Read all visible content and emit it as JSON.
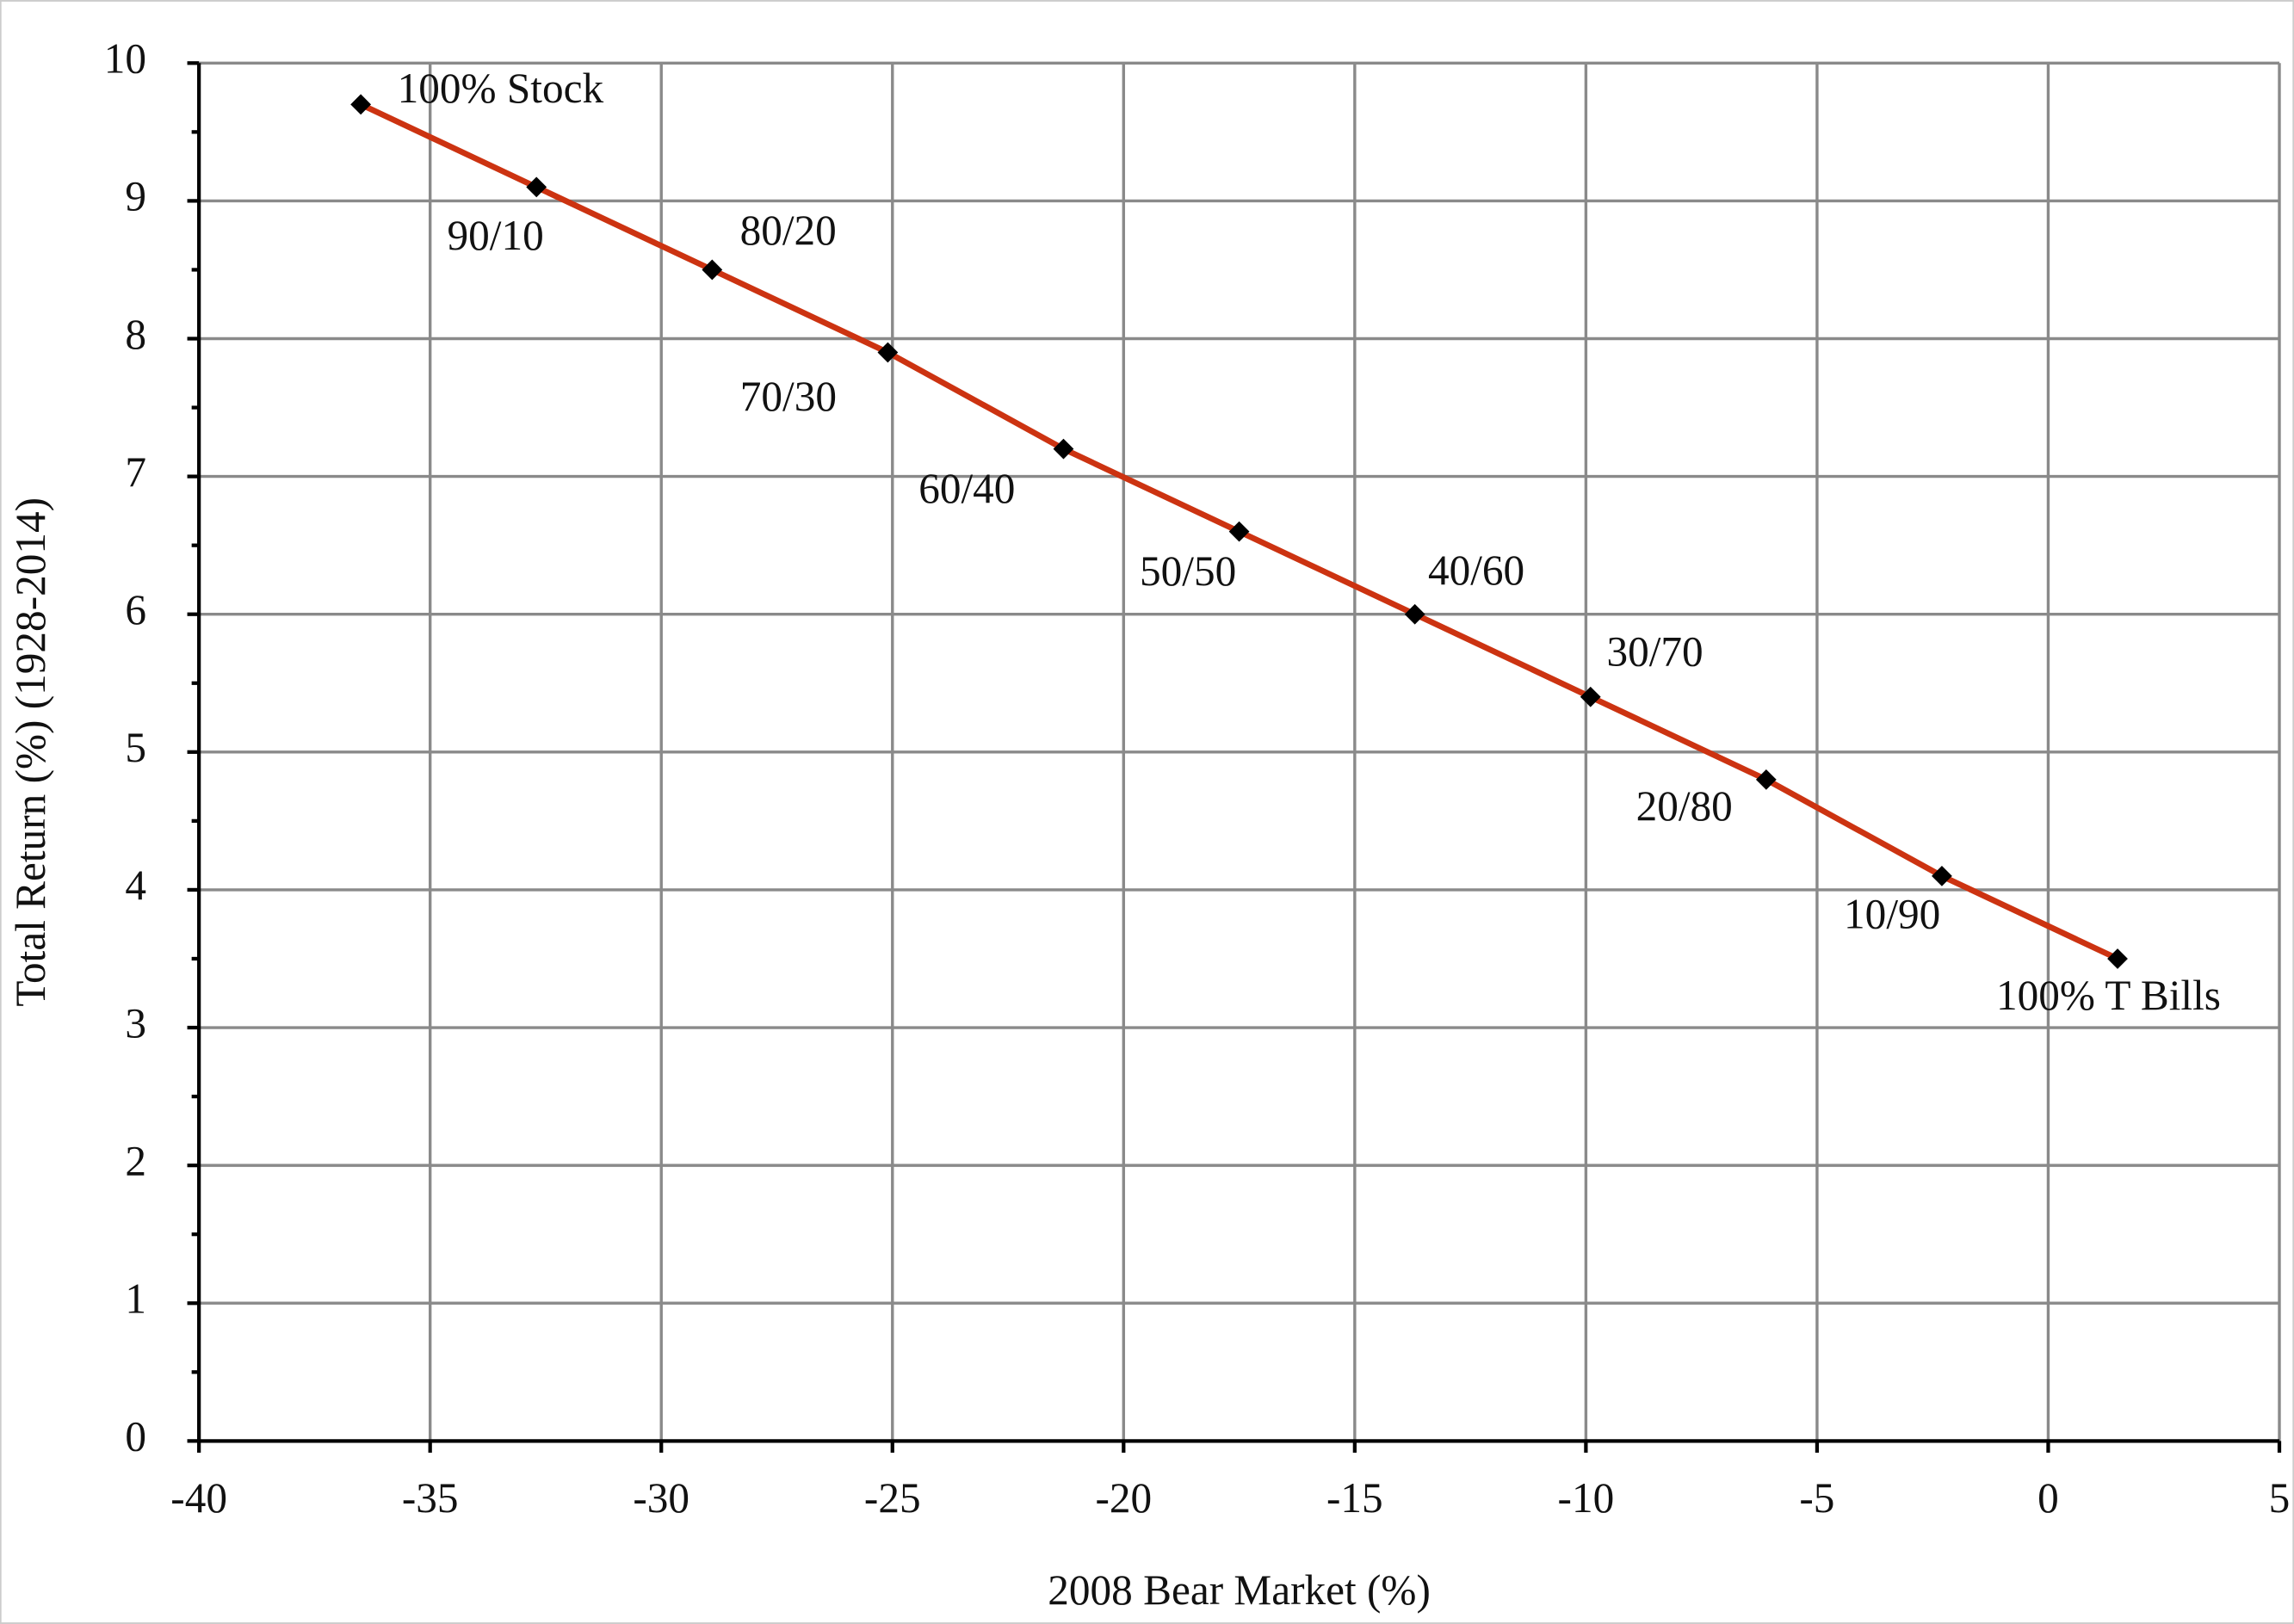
{
  "chart_data": {
    "type": "line",
    "xlabel": "2008 Bear Market (%)",
    "ylabel": "Total Return (%)  (1928-2014)",
    "x": [
      -36.5,
      -32.7,
      -28.9,
      -25.1,
      -21.3,
      -17.5,
      -13.7,
      -9.9,
      -6.1,
      -2.3,
      1.5
    ],
    "series": [
      {
        "color": "#cc3311",
        "values": [
          9.7,
          9.1,
          8.5,
          7.9,
          7.2,
          6.6,
          6.0,
          5.4,
          4.8,
          4.1,
          3.5
        ]
      }
    ],
    "point_labels": [
      "100% Stock",
      "90/10",
      "80/20",
      "70/30",
      "60/40",
      "50/50",
      "40/60",
      "30/70",
      "20/80",
      "10/90",
      "100% T Bills"
    ],
    "xlim": [
      -40,
      5
    ],
    "xticks": [
      -40,
      -35,
      -30,
      -25,
      -20,
      -15,
      -10,
      -5,
      0,
      5
    ],
    "ylim": [
      0,
      10
    ],
    "yticks": [
      0,
      1,
      2,
      3,
      4,
      5,
      6,
      7,
      8,
      9,
      10
    ],
    "grid": true
  }
}
